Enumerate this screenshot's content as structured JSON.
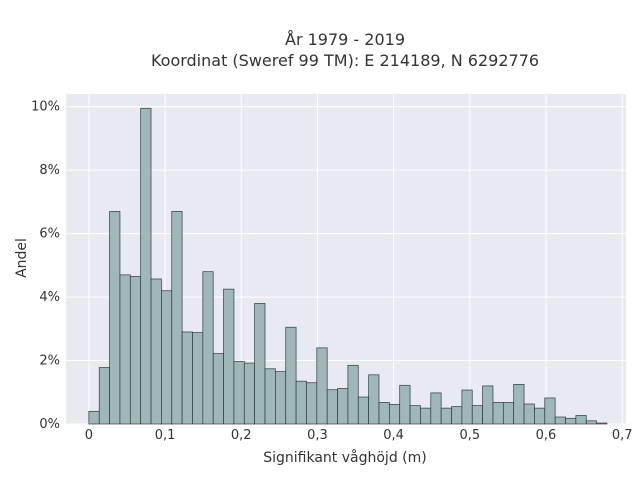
{
  "chart_data": {
    "type": "bar",
    "title": "År 1979 - 2019",
    "subtitle": "Koordinat (Sweref 99 TM): E 214189, N 6292776",
    "xlabel": "Signifikant våghöjd (m)",
    "ylabel": "Andel",
    "xlim": [
      -0.03,
      0.705
    ],
    "ylim": [
      0,
      10.4
    ],
    "grid": true,
    "legend": "none",
    "x_ticks": [
      {
        "value": 0,
        "label": "0"
      },
      {
        "value": 0.1,
        "label": "0,1"
      },
      {
        "value": 0.2,
        "label": "0,2"
      },
      {
        "value": 0.3,
        "label": "0,3"
      },
      {
        "value": 0.4,
        "label": "0,4"
      },
      {
        "value": 0.5,
        "label": "0,5"
      },
      {
        "value": 0.6,
        "label": "0,6"
      },
      {
        "value": 0.7,
        "label": "0,7"
      }
    ],
    "y_ticks": [
      {
        "value": 0,
        "label": "0%"
      },
      {
        "value": 2,
        "label": "2%"
      },
      {
        "value": 4,
        "label": "4%"
      },
      {
        "value": 6,
        "label": "6%"
      },
      {
        "value": 8,
        "label": "8%"
      },
      {
        "value": 10,
        "label": "10%"
      }
    ],
    "bin_start": 0,
    "bin_width": 0.0136,
    "values": [
      0.4,
      1.78,
      6.7,
      4.7,
      4.65,
      9.95,
      4.57,
      4.2,
      6.7,
      2.9,
      2.88,
      4.8,
      2.22,
      4.25,
      1.97,
      1.92,
      3.8,
      1.74,
      1.65,
      3.05,
      1.35,
      1.3,
      2.4,
      1.08,
      1.12,
      1.85,
      0.85,
      1.55,
      0.68,
      0.62,
      1.22,
      0.58,
      0.5,
      0.98,
      0.5,
      0.55,
      1.07,
      0.58,
      1.2,
      0.68,
      0.68,
      1.25,
      0.63,
      0.5,
      0.82,
      0.22,
      0.18,
      0.27,
      0.1,
      0.03
    ],
    "colors": {
      "bar_fill": "#9fb7b6",
      "bar_stroke": "#2f3b3b",
      "plot_background": "#e9e9f1",
      "grid": "#ffffff",
      "text": "#333333"
    }
  }
}
